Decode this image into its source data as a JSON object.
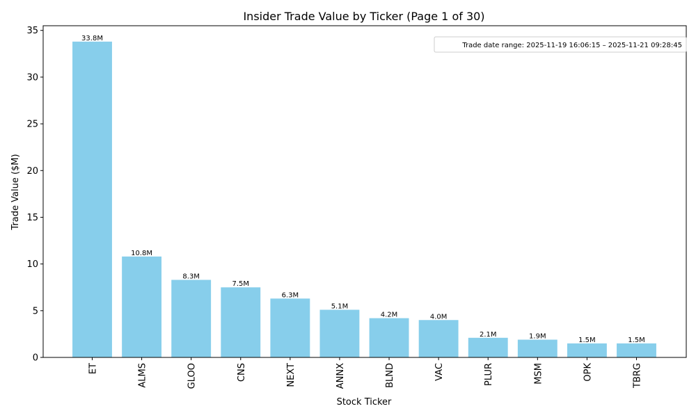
{
  "chart_data": {
    "type": "bar",
    "title": "Insider Trade Value by Ticker (Page 1 of 30)",
    "xlabel": "Stock Ticker",
    "ylabel": "Trade Value ($M)",
    "categories": [
      "ET",
      "ALMS",
      "GLOO",
      "CNS",
      "NEXT",
      "ANNX",
      "BLND",
      "VAC",
      "PLUR",
      "MSM",
      "OPK",
      "TBRG"
    ],
    "values": [
      33.8,
      10.8,
      8.3,
      7.5,
      6.3,
      5.1,
      4.2,
      4.0,
      2.1,
      1.9,
      1.5,
      1.5
    ],
    "data_labels": [
      "33.8M",
      "10.8M",
      "8.3M",
      "7.5M",
      "6.3M",
      "5.1M",
      "4.2M",
      "4.0M",
      "2.1M",
      "1.9M",
      "1.5M",
      "1.5M"
    ],
    "ylim": [
      0,
      35.5
    ],
    "yticks": [
      0,
      5,
      10,
      15,
      20,
      25,
      30,
      35
    ],
    "bar_color": "#87ceeb",
    "grid": false,
    "annotation": "Trade date range: 2025-11-19 16:06:15 – 2025-11-21 09:28:45",
    "annotation_placement": "top-right"
  }
}
